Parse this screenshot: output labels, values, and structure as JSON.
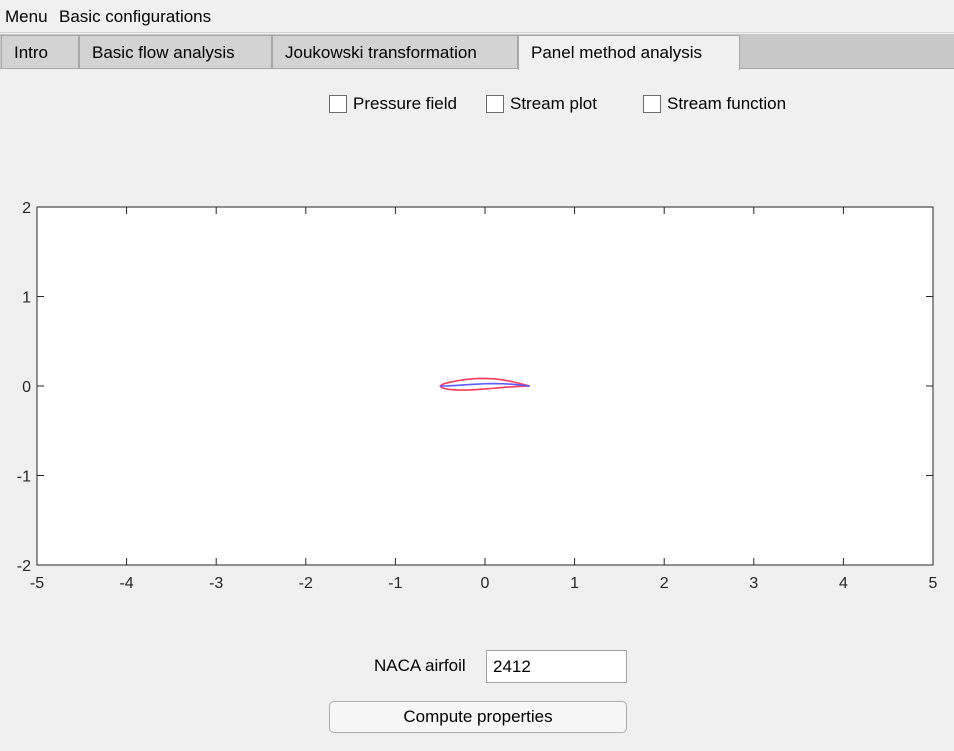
{
  "menubar": {
    "items": [
      "Menu",
      "Basic configurations"
    ]
  },
  "tabs": [
    {
      "label": "Intro",
      "active": false
    },
    {
      "label": "Basic flow analysis",
      "active": false
    },
    {
      "label": "Joukowski transformation",
      "active": false
    },
    {
      "label": "Panel method analysis",
      "active": true
    }
  ],
  "checkboxes": [
    {
      "label": "Pressure field",
      "checked": false
    },
    {
      "label": "Stream plot",
      "checked": false
    },
    {
      "label": "Stream function",
      "checked": false
    }
  ],
  "chart_data": {
    "type": "line",
    "title": "",
    "xlabel": "",
    "ylabel": "",
    "xlim": [
      -5,
      5
    ],
    "ylim": [
      -2,
      2
    ],
    "xticks": [
      "-5",
      "-4",
      "-3",
      "-2",
      "-1",
      "0",
      "1",
      "2",
      "3",
      "4",
      "5"
    ],
    "yticks": [
      "2",
      "1",
      "0",
      "-1",
      "-2"
    ],
    "grid": false,
    "series": [
      {
        "color": "#ff3b5c",
        "x": [
          0.5,
          0.4,
          0.3,
          0.2,
          0.1,
          0.0,
          -0.1,
          -0.2,
          -0.3,
          -0.4,
          -0.45,
          -0.48,
          -0.5,
          -0.48,
          -0.45,
          -0.4,
          -0.3,
          -0.2,
          -0.1,
          0.0,
          0.1,
          0.2,
          0.3,
          0.4,
          0.5
        ],
        "y": [
          0.0,
          0.025,
          0.05,
          0.068,
          0.08,
          0.085,
          0.083,
          0.075,
          0.06,
          0.04,
          0.028,
          0.015,
          0.0,
          -0.018,
          -0.028,
          -0.038,
          -0.045,
          -0.045,
          -0.04,
          -0.033,
          -0.025,
          -0.016,
          -0.009,
          -0.003,
          0.0
        ]
      },
      {
        "color": "#5b5bff",
        "x": [
          -0.5,
          -0.4,
          -0.3,
          -0.2,
          -0.1,
          0.0,
          0.1,
          0.2,
          0.3,
          0.4,
          0.5
        ],
        "y": [
          0.0,
          0.002,
          0.008,
          0.015,
          0.02,
          0.025,
          0.027,
          0.025,
          0.02,
          0.011,
          0.0
        ]
      }
    ]
  },
  "naca": {
    "label": "NACA airfoil",
    "value": "2412"
  },
  "compute_button": {
    "label": "Compute properties"
  }
}
